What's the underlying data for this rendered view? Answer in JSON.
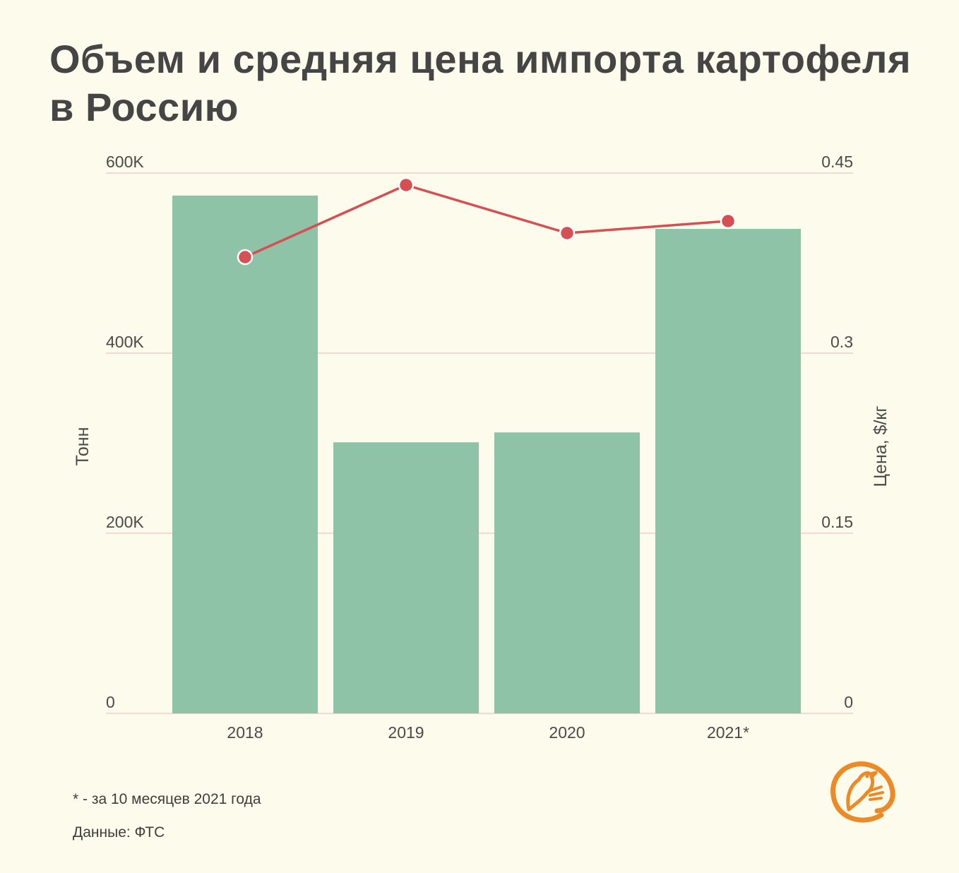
{
  "title": "Объем и средняя цена импорта картофеля в Россию",
  "footnote": "* - за 10 месяцев 2021 года",
  "source": "Данные: ФТС",
  "colors": {
    "background": "#fcfbec",
    "bar": "#8fc3a7",
    "line": "#d64f52",
    "grid": "#f0cfc4",
    "text": "#4a4a4a",
    "logo": "#ec8a27"
  },
  "logo_icon": "bird-logo-icon",
  "chart_data": {
    "type": "bar+line",
    "categories": [
      "2018",
      "2019",
      "2020",
      "2021*"
    ],
    "series": [
      {
        "type": "bar",
        "axis": "left",
        "values": [
          575000,
          301000,
          312000,
          538000
        ]
      },
      {
        "type": "line",
        "axis": "right",
        "values": [
          0.38,
          0.44,
          0.4,
          0.41
        ]
      }
    ],
    "ylabel": "Тонн",
    "ylabel_right": "Цена, $/кг",
    "ylim": [
      0,
      600000
    ],
    "ylim_right": [
      0,
      0.45
    ],
    "yticks": [
      "0",
      "200K",
      "400K",
      "600K"
    ],
    "yticks_right": [
      "0",
      "0.15",
      "0.3",
      "0.45"
    ],
    "grid": true
  }
}
